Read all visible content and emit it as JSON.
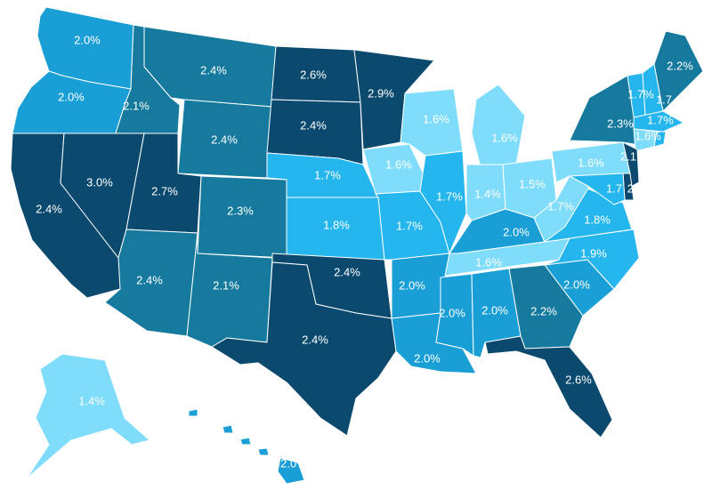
{
  "palette": {
    "very_light": "#7fdcfb",
    "light": "#26b6ee",
    "medium": "#1a9ed6",
    "mid_dark": "#157a9d",
    "dark": "#0b4a6e"
  },
  "states": [
    {
      "id": "WA",
      "value": "2.0%",
      "shade": "medium"
    },
    {
      "id": "OR",
      "value": "2.0%",
      "shade": "medium"
    },
    {
      "id": "CA",
      "value": "2.4%",
      "shade": "dark"
    },
    {
      "id": "NV",
      "value": "3.0%",
      "shade": "dark"
    },
    {
      "id": "ID",
      "value": "2.1%",
      "shade": "mid_dark"
    },
    {
      "id": "MT",
      "value": "2.4%",
      "shade": "mid_dark"
    },
    {
      "id": "WY",
      "value": "2.4%",
      "shade": "mid_dark"
    },
    {
      "id": "UT",
      "value": "2.7%",
      "shade": "dark"
    },
    {
      "id": "CO",
      "value": "2.3%",
      "shade": "mid_dark"
    },
    {
      "id": "AZ",
      "value": "2.4%",
      "shade": "mid_dark"
    },
    {
      "id": "NM",
      "value": "2.1%",
      "shade": "mid_dark"
    },
    {
      "id": "ND",
      "value": "2.6%",
      "shade": "dark"
    },
    {
      "id": "SD",
      "value": "2.4%",
      "shade": "dark"
    },
    {
      "id": "NE",
      "value": "1.7%",
      "shade": "light"
    },
    {
      "id": "KS",
      "value": "1.8%",
      "shade": "light"
    },
    {
      "id": "OK",
      "value": "2.4%",
      "shade": "dark"
    },
    {
      "id": "TX",
      "value": "2.4%",
      "shade": "dark"
    },
    {
      "id": "MN",
      "value": "2.9%",
      "shade": "dark"
    },
    {
      "id": "IA",
      "value": "1.6%",
      "shade": "very_light"
    },
    {
      "id": "MO",
      "value": "1.7%",
      "shade": "light"
    },
    {
      "id": "AR",
      "value": "2.0%",
      "shade": "medium"
    },
    {
      "id": "LA",
      "value": "2.0%",
      "shade": "medium"
    },
    {
      "id": "WI",
      "value": "1.6%",
      "shade": "very_light"
    },
    {
      "id": "IL",
      "value": "1.7%",
      "shade": "light"
    },
    {
      "id": "MI",
      "value": "1.6%",
      "shade": "very_light"
    },
    {
      "id": "IN",
      "value": "1.4%",
      "shade": "very_light"
    },
    {
      "id": "OH",
      "value": "1.5%",
      "shade": "very_light"
    },
    {
      "id": "KY",
      "value": "2.0%",
      "shade": "medium"
    },
    {
      "id": "TN",
      "value": "1.6%",
      "shade": "very_light"
    },
    {
      "id": "MS",
      "value": "2.0%",
      "shade": "medium"
    },
    {
      "id": "AL",
      "value": "2.0%",
      "shade": "medium"
    },
    {
      "id": "GA",
      "value": "2.2%",
      "shade": "mid_dark"
    },
    {
      "id": "FL",
      "value": "2.6%",
      "shade": "dark"
    },
    {
      "id": "SC",
      "value": "2.0%",
      "shade": "medium"
    },
    {
      "id": "NC",
      "value": "1.9%",
      "shade": "light"
    },
    {
      "id": "VA",
      "value": "1.8%",
      "shade": "light"
    },
    {
      "id": "WV",
      "value": "1.7%",
      "shade": "very_light"
    },
    {
      "id": "PA",
      "value": "1.6%",
      "shade": "very_light"
    },
    {
      "id": "NY",
      "value": "2.3%",
      "shade": "mid_dark"
    },
    {
      "id": "VT",
      "value": "1.7%",
      "shade": "light"
    },
    {
      "id": "NH",
      "value": "1.7",
      "shade": "light"
    },
    {
      "id": "ME",
      "value": "2.2%",
      "shade": "mid_dark"
    },
    {
      "id": "MA",
      "value": "1.7%",
      "shade": "light"
    },
    {
      "id": "CT",
      "value": "1.6%",
      "shade": "very_light"
    },
    {
      "id": "RI",
      "value": "",
      "shade": "light"
    },
    {
      "id": "NJ",
      "value": "2.1",
      "shade": "dark"
    },
    {
      "id": "DE",
      "value": "2.",
      "shade": "dark"
    },
    {
      "id": "MD",
      "value": "1.7",
      "shade": "light"
    },
    {
      "id": "AK",
      "value": "1.4%",
      "shade": "very_light"
    },
    {
      "id": "HI",
      "value": "2.0%",
      "shade": "medium"
    }
  ]
}
